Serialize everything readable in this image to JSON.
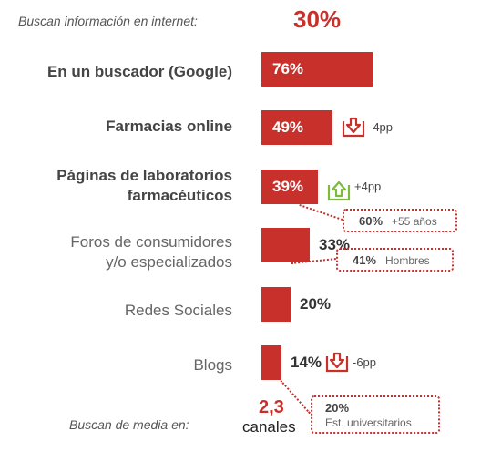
{
  "chart_data": {
    "type": "bar",
    "header_label": "Buscan información en internet:",
    "header_value": "30%",
    "categories": [
      "En un buscador (Google)",
      "Farmacias online",
      "Páginas de laboratorios farmacéuticos",
      "Foros de consumidores y/o especializados",
      "Redes Sociales",
      "Blogs"
    ],
    "category_lines": [
      [
        "En un buscador (Google)"
      ],
      [
        "Farmacias online"
      ],
      [
        "Páginas de laboratorios",
        "farmacéuticos"
      ],
      [
        "Foros de consumidores",
        "y/o especializados"
      ],
      [
        "Redes Sociales"
      ],
      [
        "Blogs"
      ]
    ],
    "values": [
      76,
      49,
      39,
      33,
      20,
      14
    ],
    "value_labels": [
      "76%",
      "49%",
      "39%",
      "33%",
      "20%",
      "14%"
    ],
    "changes": [
      {
        "index": 1,
        "direction": "down",
        "text": "-4pp",
        "color": "#c8302c"
      },
      {
        "index": 2,
        "direction": "up",
        "text": "+4pp",
        "color": "#7dbb3c"
      },
      {
        "index": 5,
        "direction": "down",
        "text": "-6pp",
        "color": "#c8302c"
      }
    ],
    "callouts": [
      {
        "index": 2,
        "value": "60%",
        "text": "+55 años"
      },
      {
        "index": 3,
        "value": "41%",
        "text": "Hombres"
      },
      {
        "index": 5,
        "value": "20%",
        "text": "Est. universitarios"
      }
    ],
    "footer_label": "Buscan de media en:",
    "footer_value": "2,3",
    "footer_unit": "canales",
    "bar_color": "#c8302c"
  }
}
